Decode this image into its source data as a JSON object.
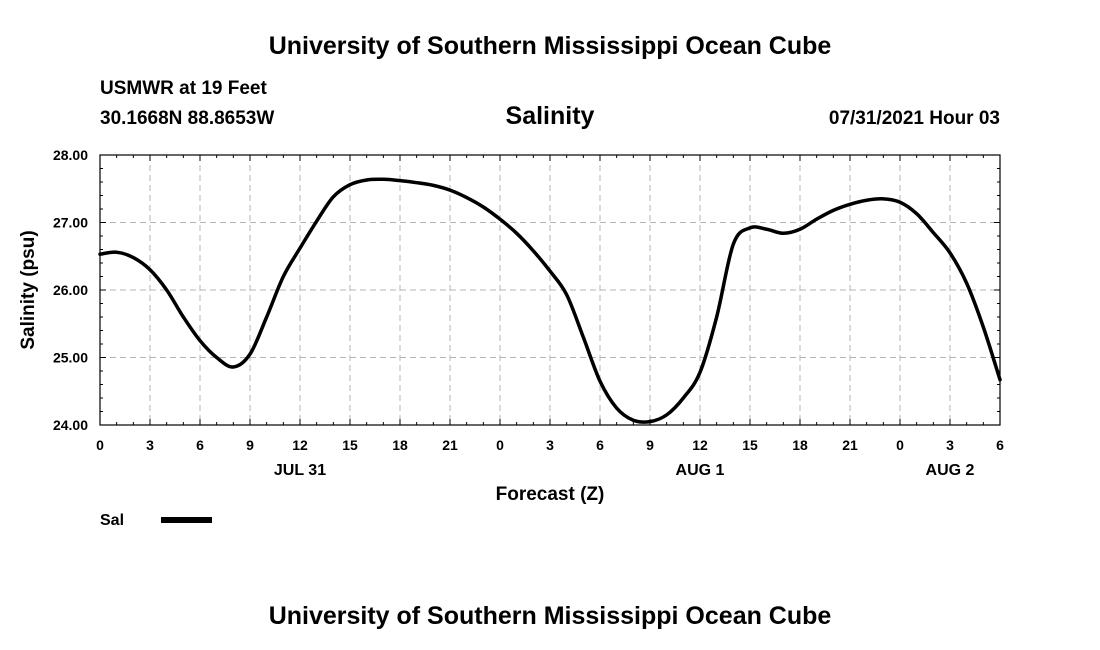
{
  "header": {
    "top_title": "University of Southern Mississippi Ocean Cube",
    "station": "USMWR at 19 Feet",
    "coords": "30.1668N  88.8653W",
    "center_title": "Salinity",
    "datetime": "07/31/2021 Hour 03",
    "bottom_title": "University of Southern Mississippi Ocean Cube"
  },
  "chart_data": {
    "type": "line",
    "title": "Salinity",
    "xlabel": "Forecast (Z)",
    "ylabel": "Salinity (psu)",
    "xlim": [
      0,
      54
    ],
    "ylim": [
      24.0,
      28.0
    ],
    "grid": true,
    "x_ticks": [
      0,
      3,
      6,
      9,
      12,
      15,
      18,
      21,
      24,
      27,
      30,
      33,
      36,
      39,
      42,
      45,
      48,
      51,
      54
    ],
    "x_tick_labels": [
      "0",
      "3",
      "6",
      "9",
      "12",
      "15",
      "18",
      "21",
      "0",
      "3",
      "6",
      "9",
      "12",
      "15",
      "18",
      "21",
      "0",
      "3",
      "6"
    ],
    "y_ticks": [
      24.0,
      25.0,
      26.0,
      27.0,
      28.0
    ],
    "y_tick_labels": [
      "24.00",
      "25.00",
      "26.00",
      "27.00",
      "28.00"
    ],
    "date_labels": [
      {
        "x": 12,
        "label": "JUL 31"
      },
      {
        "x": 36,
        "label": "AUG 1"
      },
      {
        "x": 51,
        "label": "AUG 2"
      }
    ],
    "series": [
      {
        "name": "Sal",
        "color": "#000000",
        "x": [
          0,
          1,
          2,
          3,
          4,
          5,
          6,
          7,
          8,
          9,
          10,
          11,
          12,
          13,
          14,
          15,
          16,
          17,
          18,
          19,
          20,
          21,
          22,
          23,
          24,
          25,
          26,
          27,
          28,
          29,
          30,
          31,
          32,
          33,
          34,
          35,
          36,
          37,
          38,
          39,
          40,
          41,
          42,
          43,
          44,
          45,
          46,
          47,
          48,
          49,
          50,
          51,
          52,
          53,
          54
        ],
        "values": [
          26.53,
          26.56,
          26.48,
          26.3,
          26.0,
          25.6,
          25.25,
          25.0,
          24.86,
          25.05,
          25.6,
          26.2,
          26.62,
          27.02,
          27.38,
          27.56,
          27.63,
          27.64,
          27.62,
          27.59,
          27.55,
          27.48,
          27.37,
          27.23,
          27.05,
          26.84,
          26.58,
          26.28,
          25.93,
          25.3,
          24.65,
          24.25,
          24.07,
          24.05,
          24.15,
          24.4,
          24.78,
          25.6,
          26.68,
          26.92,
          26.9,
          26.84,
          26.9,
          27.05,
          27.18,
          27.27,
          27.33,
          27.35,
          27.3,
          27.13,
          26.85,
          26.55,
          26.1,
          25.45,
          24.67
        ]
      }
    ],
    "legend": [
      {
        "label": "Sal",
        "color": "#000000"
      }
    ],
    "legend_position": "bottom-left"
  }
}
